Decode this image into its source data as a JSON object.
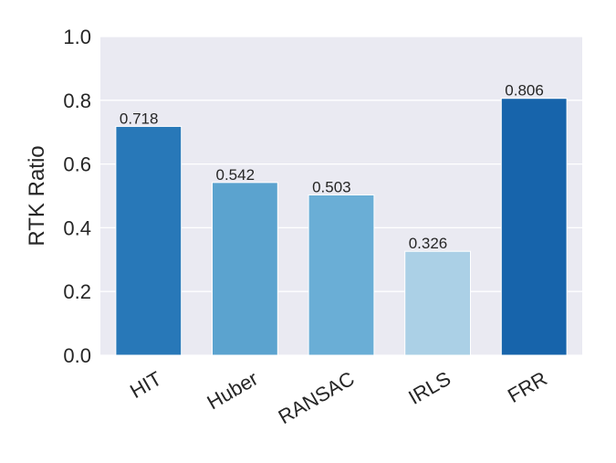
{
  "chart_data": {
    "type": "bar",
    "categories": [
      "HIT",
      "Huber",
      "RANSAC",
      "IRLS",
      "FRR"
    ],
    "values": [
      0.718,
      0.542,
      0.503,
      0.326,
      0.806
    ],
    "value_labels": [
      "0.718",
      "0.542",
      "0.503",
      "0.326",
      "0.806"
    ],
    "colors": [
      "#2878b8",
      "#5ba3cf",
      "#6aaed6",
      "#abd0e6",
      "#1764ab"
    ],
    "ylabel": "RTK Ratio",
    "xlabel": "",
    "ylim": [
      0,
      1.0
    ],
    "yticks": [
      "0.0",
      "0.2",
      "0.4",
      "0.6",
      "0.8",
      "1.0"
    ],
    "grid": true,
    "background": "#eaeaf2",
    "grid_color": "#ffffff"
  }
}
